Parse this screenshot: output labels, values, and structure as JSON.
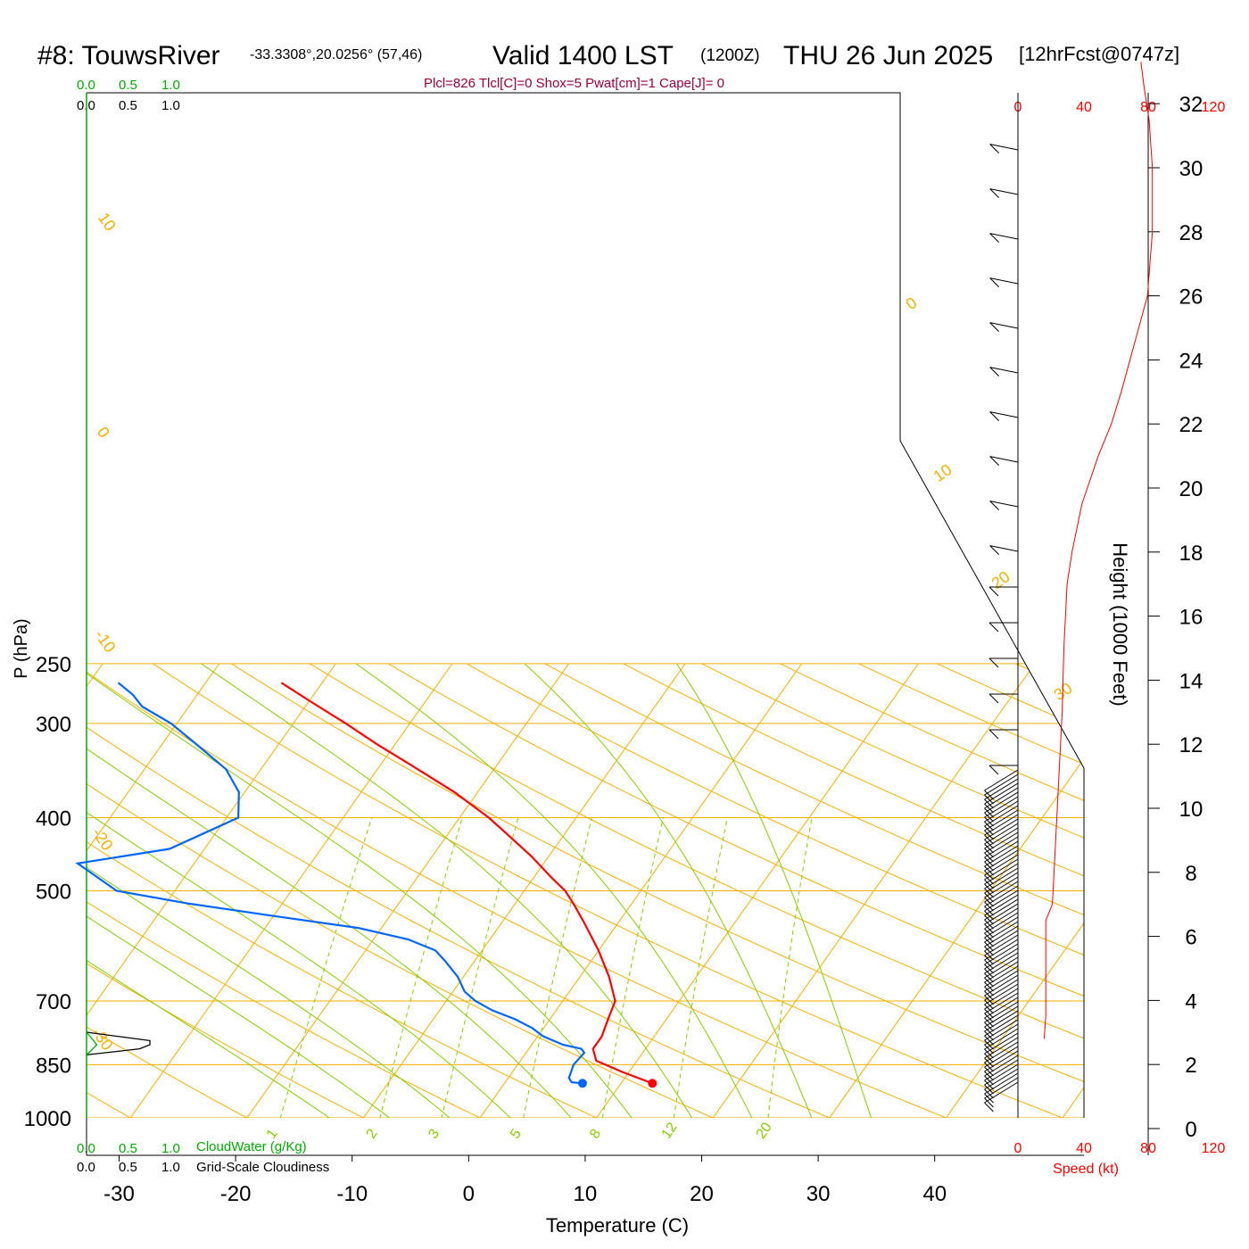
{
  "header": {
    "station": "#8: TouwsRiver",
    "coords": "-33.3308°,20.0256° (57,46)",
    "valid": "Valid 1400 LST",
    "zulu": "(1200Z)",
    "date": "THU 26 Jun 2025",
    "forecast": "[12hrFcst@0747z]",
    "indices": "Plcl=826 Tlcl[C]=0 Shox=5 Pwat[cm]=1 Cape[J]= 0"
  },
  "colors": {
    "temperature": "#ff0000",
    "dewpoint": "#0066ff",
    "isotherm": "#f5b000",
    "adiabat": "#88cc00",
    "cloud_water": "#00aa00",
    "speed": "#ff0000",
    "title_indices": "#990033"
  },
  "cloud_scales": {
    "top": {
      "ticks": [
        "0.0",
        "0.5",
        "1.0"
      ]
    },
    "cloudiness": {
      "ticks": [
        "0.0",
        "0.5",
        "1.0"
      ]
    },
    "bottom_water": {
      "ticks": [
        "0.0",
        "0.5",
        "1.0"
      ],
      "label": "CloudWater (g/Kg)"
    },
    "bottom_cloudiness": {
      "ticks": [
        "0.0",
        "0.5",
        "1.0"
      ],
      "label": "Grid-Scale Cloudiness"
    }
  },
  "speed_axis": {
    "ticks": [
      "0",
      "40",
      "80",
      "120"
    ],
    "label": "Speed (kt)"
  },
  "chart_data": {
    "type": "skew-t",
    "xlabel": "Temperature (C)",
    "ylabel": "P (hPa)",
    "y2label": "Height (1000 Feet)",
    "x_ticks": [
      -30,
      -20,
      -10,
      0,
      10,
      20,
      30,
      40
    ],
    "p_ticks": [
      250,
      300,
      400,
      500,
      700,
      850,
      1000
    ],
    "height_ticks": [
      0,
      2,
      4,
      6,
      8,
      10,
      12,
      14,
      16,
      18,
      20,
      22,
      24,
      26,
      28,
      30,
      32
    ],
    "mixing_ratio_labels": [
      "1",
      "2",
      "3",
      "5",
      "8",
      "12",
      "20"
    ],
    "isotherm_labels": [
      "10",
      "0",
      "-10",
      "-20",
      "-30",
      "0",
      "10",
      "20",
      "30"
    ],
    "temperature": [
      {
        "p": 900,
        "t": 12.7
      },
      {
        "p": 870,
        "t": 9.5
      },
      {
        "p": 840,
        "t": 6.5
      },
      {
        "p": 810,
        "t": 5.5
      },
      {
        "p": 780,
        "t": 5.5
      },
      {
        "p": 740,
        "t": 5.0
      },
      {
        "p": 700,
        "t": 4.5
      },
      {
        "p": 650,
        "t": 2.5
      },
      {
        "p": 600,
        "t": 0.0
      },
      {
        "p": 550,
        "t": -3.0
      },
      {
        "p": 520,
        "t": -5.0
      },
      {
        "p": 500,
        "t": -6.5
      },
      {
        "p": 480,
        "t": -8.5
      },
      {
        "p": 450,
        "t": -11.5
      },
      {
        "p": 420,
        "t": -15.0
      },
      {
        "p": 400,
        "t": -17.5
      },
      {
        "p": 370,
        "t": -22.0
      },
      {
        "p": 340,
        "t": -27.5
      },
      {
        "p": 320,
        "t": -31.5
      },
      {
        "p": 300,
        "t": -35.5
      },
      {
        "p": 280,
        "t": -40.0
      },
      {
        "p": 265,
        "t": -43.5
      }
    ],
    "dewpoint": [
      {
        "p": 900,
        "t": 6.7
      },
      {
        "p": 897,
        "t": 5.7
      },
      {
        "p": 885,
        "t": 5.2
      },
      {
        "p": 850,
        "t": 4.8
      },
      {
        "p": 820,
        "t": 5.0
      },
      {
        "p": 810,
        "t": 4.5
      },
      {
        "p": 800,
        "t": 2.7
      },
      {
        "p": 780,
        "t": 0.5
      },
      {
        "p": 760,
        "t": -1.0
      },
      {
        "p": 740,
        "t": -3.0
      },
      {
        "p": 720,
        "t": -5.5
      },
      {
        "p": 700,
        "t": -7.5
      },
      {
        "p": 680,
        "t": -9.0
      },
      {
        "p": 650,
        "t": -10.5
      },
      {
        "p": 620,
        "t": -12.5
      },
      {
        "p": 600,
        "t": -14.0
      },
      {
        "p": 580,
        "t": -17.0
      },
      {
        "p": 560,
        "t": -22.0
      },
      {
        "p": 540,
        "t": -30.0
      },
      {
        "p": 520,
        "t": -38.0
      },
      {
        "p": 500,
        "t": -45.0
      },
      {
        "p": 460,
        "t": -50.0
      },
      {
        "p": 440,
        "t": -43.0
      },
      {
        "p": 400,
        "t": -39.0
      },
      {
        "p": 370,
        "t": -40.5
      },
      {
        "p": 345,
        "t": -43.0
      },
      {
        "p": 320,
        "t": -47.0
      },
      {
        "p": 300,
        "t": -50.5
      },
      {
        "p": 285,
        "t": -54.0
      },
      {
        "p": 275,
        "t": -55.5
      },
      {
        "p": 265,
        "t": -57.5
      }
    ],
    "wind_speed_profile_kt": [
      {
        "h": 2.8,
        "s": 16
      },
      {
        "h": 3.5,
        "s": 17
      },
      {
        "h": 5.0,
        "s": 17
      },
      {
        "h": 6.5,
        "s": 17
      },
      {
        "h": 7.0,
        "s": 21
      },
      {
        "h": 9.0,
        "s": 23
      },
      {
        "h": 11.0,
        "s": 25
      },
      {
        "h": 13.0,
        "s": 27
      },
      {
        "h": 15.0,
        "s": 28
      },
      {
        "h": 17.0,
        "s": 30
      },
      {
        "h": 18.0,
        "s": 33
      },
      {
        "h": 19.5,
        "s": 39
      },
      {
        "h": 21.0,
        "s": 49
      },
      {
        "h": 22.0,
        "s": 57
      },
      {
        "h": 23.0,
        "s": 63
      },
      {
        "h": 24.5,
        "s": 71
      },
      {
        "h": 26.0,
        "s": 79
      },
      {
        "h": 28.0,
        "s": 82
      },
      {
        "h": 30.0,
        "s": 82
      },
      {
        "h": 31.5,
        "s": 80
      },
      {
        "h": 32.5,
        "s": 77
      },
      {
        "h": 33.3,
        "s": 75
      }
    ],
    "cloud_water": [
      {
        "p": 770,
        "v": 0.0
      },
      {
        "p": 790,
        "v": 0.08
      },
      {
        "p": 800,
        "v": 0.12
      },
      {
        "p": 815,
        "v": 0.05
      },
      {
        "p": 825,
        "v": 0.0
      }
    ],
    "cloudiness": [
      {
        "p": 770,
        "v": 0.0
      },
      {
        "p": 790,
        "v": 0.74
      },
      {
        "p": 800,
        "v": 0.74
      },
      {
        "p": 810,
        "v": 0.62
      },
      {
        "p": 825,
        "v": 0.0
      }
    ]
  }
}
